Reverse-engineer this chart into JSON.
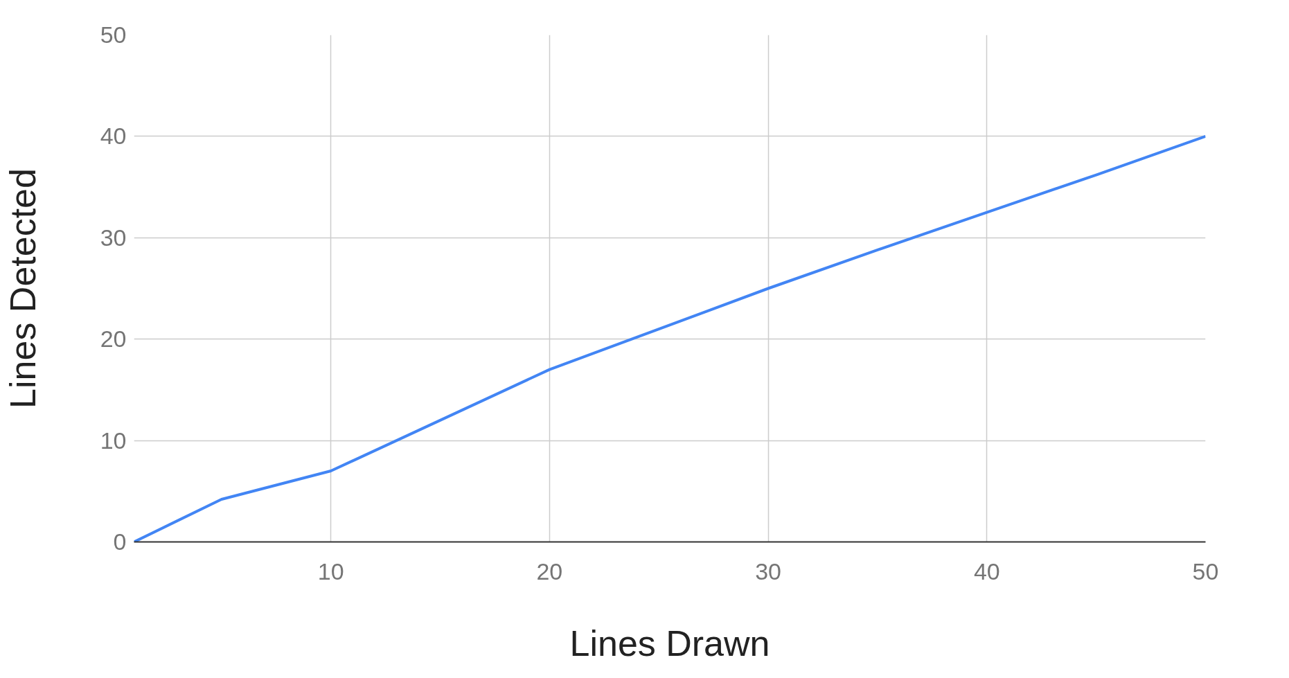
{
  "chart_data": {
    "type": "line",
    "xlabel": "Lines Drawn",
    "ylabel": "Lines Detected",
    "x": [
      1,
      5,
      10,
      15,
      20,
      25,
      30,
      35,
      40,
      45,
      50
    ],
    "series": [
      {
        "color": "#4285f4",
        "values": [
          0,
          4.2,
          7,
          12,
          17,
          21,
          25,
          28.8,
          32.5,
          36.2,
          40
        ]
      }
    ],
    "xlim": [
      1,
      50
    ],
    "ylim": [
      0,
      50
    ],
    "xticks": [
      10,
      20,
      30,
      40,
      50
    ],
    "yticks": [
      0,
      10,
      20,
      30,
      40,
      50
    ],
    "grid": true,
    "marker": "none",
    "line_style": "solid"
  }
}
